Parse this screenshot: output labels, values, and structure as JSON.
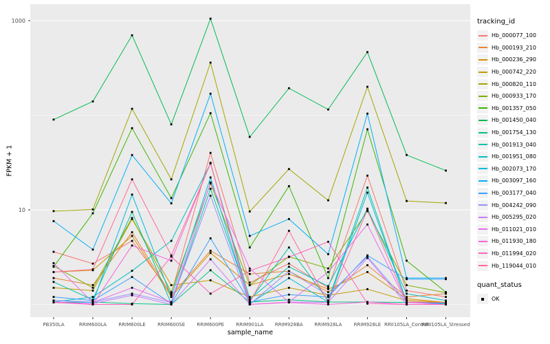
{
  "chart_data": {
    "type": "line",
    "title": "",
    "xlabel": "sample_name",
    "ylabel": "FPKM + 1",
    "y_scale": "log10",
    "ylim": [
      1,
      1400
    ],
    "y_major_ticks": [
      1000,
      10
    ],
    "y_minor_gridlines": [
      100,
      1
    ],
    "grid": true,
    "legend_title": "tracking_id",
    "legend_position": "right",
    "panel_bg": "#EBEBEB",
    "gridline_color": "#FFFFFF",
    "point_color": "#000000",
    "axis_text_color": "#4D4D4D",
    "categories": [
      "PB350LA",
      "RRIM600LA",
      "RRIM600LE",
      "RRIM600SE",
      "RRIM600PE",
      "RRIM901LA",
      "RRIM928BA",
      "RRIM928LA",
      "RRIM928LE",
      "RRII105LA_Control",
      "RRII105LA_Stressed"
    ],
    "series": [
      {
        "name": "Hb_000077_100",
        "color": "#F8766D",
        "values": [
          3.6,
          2.7,
          4.7,
          1.3,
          40,
          1.7,
          2.7,
          1.5,
          23,
          1.4,
          1.2
        ]
      },
      {
        "name": "Hb_000193_210",
        "color": "#EA8331",
        "values": [
          1.9,
          1.6,
          5.8,
          1.25,
          3.7,
          2.1,
          2.25,
          1.35,
          2.6,
          1.2,
          1.3
        ]
      },
      {
        "name": "Hb_000236_290",
        "color": "#D89000",
        "values": [
          2.2,
          2.3,
          5.3,
          1.2,
          3.5,
          1.6,
          2.1,
          1.45,
          2.2,
          1.15,
          1.05
        ]
      },
      {
        "name": "Hb_000742_220",
        "color": "#C09B00",
        "values": [
          1.5,
          1.4,
          8.0,
          1.6,
          1.8,
          1.2,
          1.5,
          1.25,
          1.45,
          1.1,
          1.05
        ]
      },
      {
        "name": "Hb_000820_110",
        "color": "#A3A500",
        "values": [
          9.7,
          10.1,
          117,
          21,
          360,
          9.6,
          27,
          12.6,
          200,
          12.4,
          11.8
        ]
      },
      {
        "name": "Hb_000933_170",
        "color": "#7CAE00",
        "values": [
          2.55,
          1.5,
          8.2,
          1.35,
          19,
          1.6,
          3.2,
          2.4,
          9.7,
          1.6,
          1.33
        ]
      },
      {
        "name": "Hb_001357_050",
        "color": "#39B600",
        "values": [
          2.5,
          9.2,
          73,
          13.3,
          105,
          4.0,
          17.8,
          1.9,
          71,
          2.9,
          1.35
        ]
      },
      {
        "name": "Hb_001450_040",
        "color": "#00BB4E",
        "values": [
          90,
          140,
          700,
          80,
          1050,
          59,
          193,
          115,
          465,
          38,
          26
        ]
      },
      {
        "name": "Hb_001754_130",
        "color": "#00C087",
        "values": [
          1.05,
          1.06,
          1.02,
          1.0,
          2.3,
          1.06,
          1.12,
          1.06,
          1.06,
          1.05,
          1.04
        ]
      },
      {
        "name": "Hb_001913_040",
        "color": "#00C1A9",
        "values": [
          1.73,
          1.12,
          9.5,
          1.02,
          16.7,
          1.1,
          4.0,
          1.1,
          17.2,
          1.06,
          1.02
        ]
      },
      {
        "name": "Hb_001951_080",
        "color": "#00BFC4",
        "values": [
          1.06,
          1.2,
          2.27,
          4.7,
          31,
          1.14,
          2.5,
          1.56,
          10.3,
          1.3,
          1.1
        ]
      },
      {
        "name": "Hb_002073_170",
        "color": "#00BAE0",
        "values": [
          1.1,
          1.05,
          14.5,
          1.2,
          22,
          1.02,
          1.9,
          1.06,
          15.2,
          1.06,
          1.02
        ]
      },
      {
        "name": "Hb_003097_160",
        "color": "#00B0F6",
        "values": [
          7.6,
          3.8,
          38,
          11.7,
          169,
          5.3,
          8.0,
          3.4,
          104,
          1.9,
          1.9
        ]
      },
      {
        "name": "Hb_003177_040",
        "color": "#35A2FF",
        "values": [
          1.2,
          1.1,
          1.95,
          1.02,
          5.0,
          1.06,
          1.27,
          1.2,
          3.3,
          1.85,
          1.85
        ]
      },
      {
        "name": "Hb_004242_090",
        "color": "#9590FF",
        "values": [
          1.1,
          1.06,
          1.3,
          1.05,
          14.1,
          1.0,
          2.25,
          1.25,
          3.2,
          1.06,
          1.0
        ]
      },
      {
        "name": "Hb_005295_020",
        "color": "#C77CFF",
        "values": [
          1.06,
          1.02,
          1.25,
          1.0,
          3.0,
          1.0,
          1.06,
          1.05,
          3.1,
          1.0,
          1.0
        ]
      },
      {
        "name": "Hb_011021_010",
        "color": "#E76BF3",
        "values": [
          2.73,
          1.05,
          1.5,
          1.06,
          19.5,
          2.4,
          1.06,
          2.2,
          7.0,
          1.05,
          1.0
        ]
      },
      {
        "name": "Hb_011930_180",
        "color": "#FA62DB",
        "values": [
          1.05,
          1.0,
          4.2,
          2.9,
          31.4,
          1.0,
          1.05,
          1.0,
          1.06,
          1.0,
          1.0
        ]
      },
      {
        "name": "Hb_011994_020",
        "color": "#FF62BC",
        "values": [
          1.06,
          1.0,
          1.0,
          3.2,
          1.3,
          2.27,
          3.17,
          4.6,
          1.02,
          1.0,
          1.0
        ]
      },
      {
        "name": "Hb_119044_010",
        "color": "#FF6A98",
        "values": [
          2.2,
          2.35,
          21,
          3.3,
          31,
          1.05,
          6.0,
          1.05,
          10.0,
          1.06,
          1.05
        ]
      }
    ]
  },
  "legend": {
    "quant_status": {
      "title": "quant_status",
      "items": [
        {
          "label": "OK",
          "color": "#000000"
        }
      ]
    }
  }
}
